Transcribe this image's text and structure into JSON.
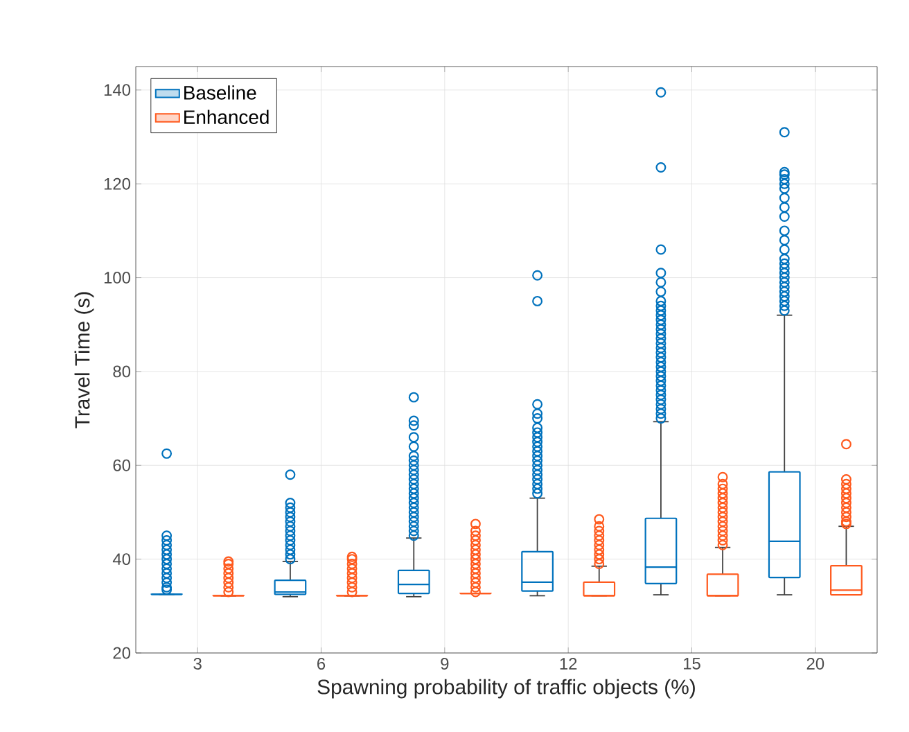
{
  "chart_data": {
    "type": "box",
    "xlabel": "Spawning probability of traffic objects (%)",
    "ylabel": "Travel Time (s)",
    "categories": [
      "3",
      "6",
      "9",
      "12",
      "15",
      "20"
    ],
    "ylim": [
      20,
      145
    ],
    "yticks": [
      20,
      40,
      60,
      80,
      100,
      120,
      140
    ],
    "grid": true,
    "legend": "top left",
    "marker": "circle",
    "series": [
      {
        "name": "Baseline",
        "color": "#0072bd",
        "boxes": [
          {
            "low": 32.5,
            "q1": 32.5,
            "median": 32.5,
            "q3": 32.5,
            "high": 32.5,
            "outliers": [
              33.5,
              34,
              35,
              36,
              37,
              38,
              39,
              40,
              41,
              42,
              43,
              44,
              45,
              62.5
            ]
          },
          {
            "low": 32,
            "q1": 32.5,
            "median": 33,
            "q3": 35.5,
            "high": 39.5,
            "outliers": [
              40,
              41,
              42,
              43,
              44,
              45,
              46,
              47,
              48,
              49,
              50,
              51,
              52,
              58
            ]
          },
          {
            "low": 32,
            "q1": 32.7,
            "median": 34.6,
            "q3": 37.6,
            "high": 44.5,
            "outliers": [
              45,
              46,
              47,
              48,
              49,
              50,
              51,
              52,
              53,
              54,
              55,
              56,
              57,
              58,
              59,
              60,
              61,
              62,
              64,
              66,
              68.5,
              69.5,
              74.5
            ]
          },
          {
            "low": 32.2,
            "q1": 33.2,
            "median": 35.1,
            "q3": 41.6,
            "high": 53,
            "outliers": [
              54,
              55,
              56,
              57,
              58,
              59,
              60,
              61,
              62,
              63,
              64,
              65,
              66,
              67,
              68,
              70,
              71,
              73,
              95,
              100.5
            ]
          },
          {
            "low": 32.4,
            "q1": 34.8,
            "median": 38.3,
            "q3": 48.7,
            "high": 69.3,
            "outliers": [
              70,
              71,
              72,
              73,
              74,
              75,
              76,
              77,
              78,
              79,
              80,
              81,
              82,
              83,
              84,
              85,
              86,
              87,
              88,
              89,
              90,
              91,
              92,
              93,
              94,
              95,
              97,
              99,
              101,
              106,
              123.5,
              139.5
            ]
          },
          {
            "low": 32.4,
            "q1": 36.1,
            "median": 43.8,
            "q3": 58.6,
            "high": 92,
            "outliers": [
              93,
              94,
              95,
              96,
              97,
              98,
              99,
              100,
              101,
              102,
              103,
              104,
              106,
              108,
              110,
              113,
              115,
              117,
              119,
              120,
              121,
              122,
              122.5,
              131
            ]
          }
        ]
      },
      {
        "name": "Enhanced",
        "color": "#ff5a1e",
        "boxes": [
          {
            "low": 32.2,
            "q1": 32.2,
            "median": 32.2,
            "q3": 32.2,
            "high": 32.2,
            "outliers": [
              33,
              34,
              35,
              36,
              37,
              38,
              39,
              39.5
            ]
          },
          {
            "low": 32.2,
            "q1": 32.2,
            "median": 32.2,
            "q3": 32.2,
            "high": 32.2,
            "outliers": [
              33,
              34,
              35,
              36,
              37,
              38,
              39,
              40,
              40.5
            ]
          },
          {
            "low": 32.7,
            "q1": 32.7,
            "median": 32.7,
            "q3": 32.7,
            "high": 32.7,
            "outliers": [
              33,
              34,
              35,
              36,
              37,
              38,
              39,
              40,
              41,
              42,
              43,
              44,
              45,
              46,
              47.5
            ]
          },
          {
            "low": 32.2,
            "q1": 32.2,
            "median": 32.2,
            "q3": 35.1,
            "high": 38.5,
            "outliers": [
              39,
              40,
              41,
              42,
              43,
              44,
              45,
              46,
              47,
              48.5
            ]
          },
          {
            "low": 32.2,
            "q1": 32.2,
            "median": 32.2,
            "q3": 36.8,
            "high": 42.5,
            "outliers": [
              43,
              44,
              45,
              46,
              47,
              48,
              49,
              50,
              51,
              52,
              53,
              54,
              55,
              56,
              57.5
            ]
          },
          {
            "low": 32.4,
            "q1": 32.4,
            "median": 33.4,
            "q3": 38.6,
            "high": 47,
            "outliers": [
              47.5,
              48,
              49,
              50,
              51,
              52,
              53,
              54,
              55,
              56,
              57,
              64.5
            ]
          }
        ]
      }
    ]
  }
}
